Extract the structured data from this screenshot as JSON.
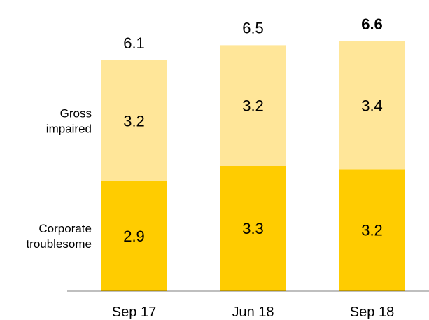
{
  "chart_data": {
    "type": "bar",
    "stacked": true,
    "title": "",
    "xlabel": "",
    "ylabel": "",
    "categories": [
      "Sep 17",
      "Jun 18",
      "Sep 18"
    ],
    "series": [
      {
        "name": "Corporate troublesome",
        "values": [
          2.9,
          3.3,
          3.2
        ],
        "color": "#FFCC00"
      },
      {
        "name": "Gross impaired",
        "values": [
          3.2,
          3.2,
          3.4
        ],
        "color": "#FFE699"
      }
    ],
    "totals": [
      6.1,
      6.5,
      6.6
    ],
    "total_labels": [
      "6.1",
      "6.5",
      "6.6"
    ],
    "value_labels": [
      [
        "2.9",
        "3.3",
        "3.2"
      ],
      [
        "3.2",
        "3.2",
        "3.4"
      ]
    ],
    "emphasized_total_index": 2,
    "series_label_lines": [
      [
        "Corporate",
        "troublesome"
      ],
      [
        "Gross",
        "impaired"
      ]
    ],
    "ylim": [
      0,
      6.6
    ],
    "grid": false,
    "legend": "left side labels",
    "axis_color": "#000000"
  }
}
